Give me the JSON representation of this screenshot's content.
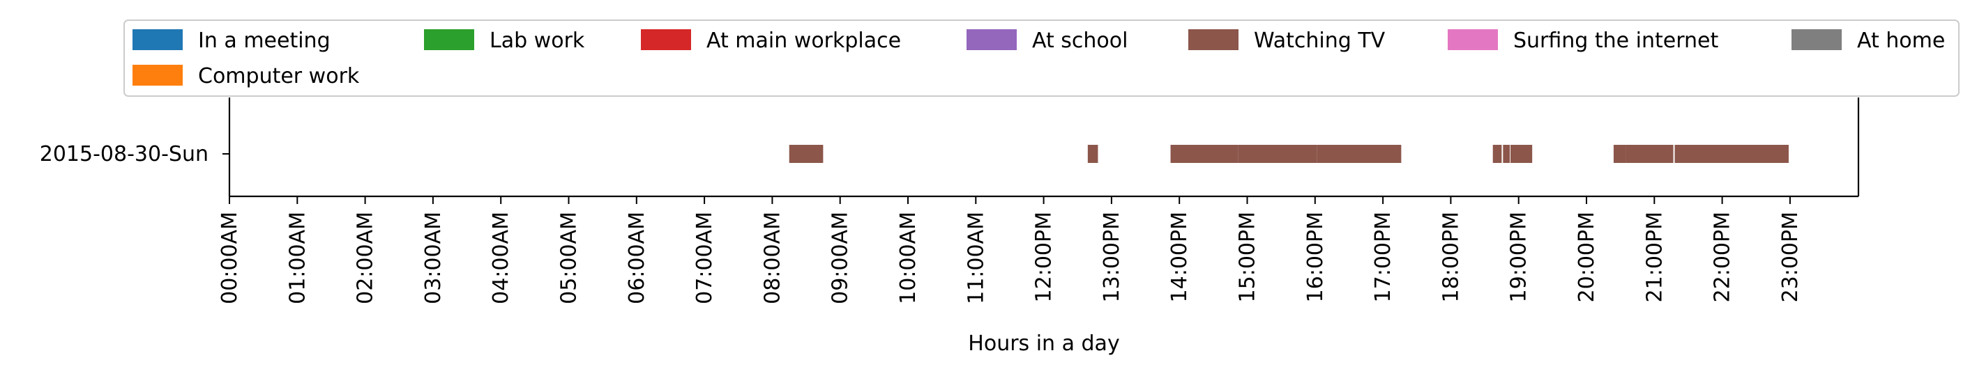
{
  "chart_data": {
    "type": "timeline",
    "xlabel": "Hours in a day",
    "ylabel": "",
    "title": "",
    "xlim": [
      0,
      24
    ],
    "categories": [
      "2015-08-30-Sun"
    ],
    "x_ticks": [
      "00:00AM",
      "01:00AM",
      "02:00AM",
      "03:00AM",
      "04:00AM",
      "05:00AM",
      "06:00AM",
      "07:00AM",
      "08:00AM",
      "09:00AM",
      "10:00AM",
      "11:00AM",
      "12:00PM",
      "13:00PM",
      "14:00PM",
      "15:00PM",
      "16:00PM",
      "17:00PM",
      "18:00PM",
      "19:00PM",
      "20:00PM",
      "21:00PM",
      "22:00PM",
      "23:00PM"
    ],
    "legend_position": "top",
    "grid": false,
    "series": [
      {
        "name": "In a meeting",
        "color": "#1f77b4",
        "segments": []
      },
      {
        "name": "Lab work",
        "color": "#2ca02c",
        "segments": []
      },
      {
        "name": "At main workplace",
        "color": "#d62728",
        "segments": []
      },
      {
        "name": "At school",
        "color": "#9467bd",
        "segments": []
      },
      {
        "name": "Watching TV",
        "color": "#8c564b",
        "segments": [
          {
            "day": "2015-08-30-Sun",
            "start": 8.25,
            "end": 8.75
          },
          {
            "day": "2015-08-30-Sun",
            "start": 12.65,
            "end": 12.8
          },
          {
            "day": "2015-08-30-Sun",
            "start": 13.87,
            "end": 14.87
          },
          {
            "day": "2015-08-30-Sun",
            "start": 14.87,
            "end": 16.03
          },
          {
            "day": "2015-08-30-Sun",
            "start": 16.03,
            "end": 17.27
          },
          {
            "day": "2015-08-30-Sun",
            "start": 18.62,
            "end": 18.75
          },
          {
            "day": "2015-08-30-Sun",
            "start": 18.77,
            "end": 18.87
          },
          {
            "day": "2015-08-30-Sun",
            "start": 18.88,
            "end": 19.2
          },
          {
            "day": "2015-08-30-Sun",
            "start": 20.4,
            "end": 20.58
          },
          {
            "day": "2015-08-30-Sun",
            "start": 20.58,
            "end": 21.28
          },
          {
            "day": "2015-08-30-Sun",
            "start": 21.3,
            "end": 22.98
          }
        ]
      },
      {
        "name": "Surfing the internet",
        "color": "#e377c2",
        "segments": []
      },
      {
        "name": "At home",
        "color": "#7f7f7f",
        "segments": []
      },
      {
        "name": "Computer work",
        "color": "#ff7f0e",
        "segments": []
      }
    ]
  }
}
